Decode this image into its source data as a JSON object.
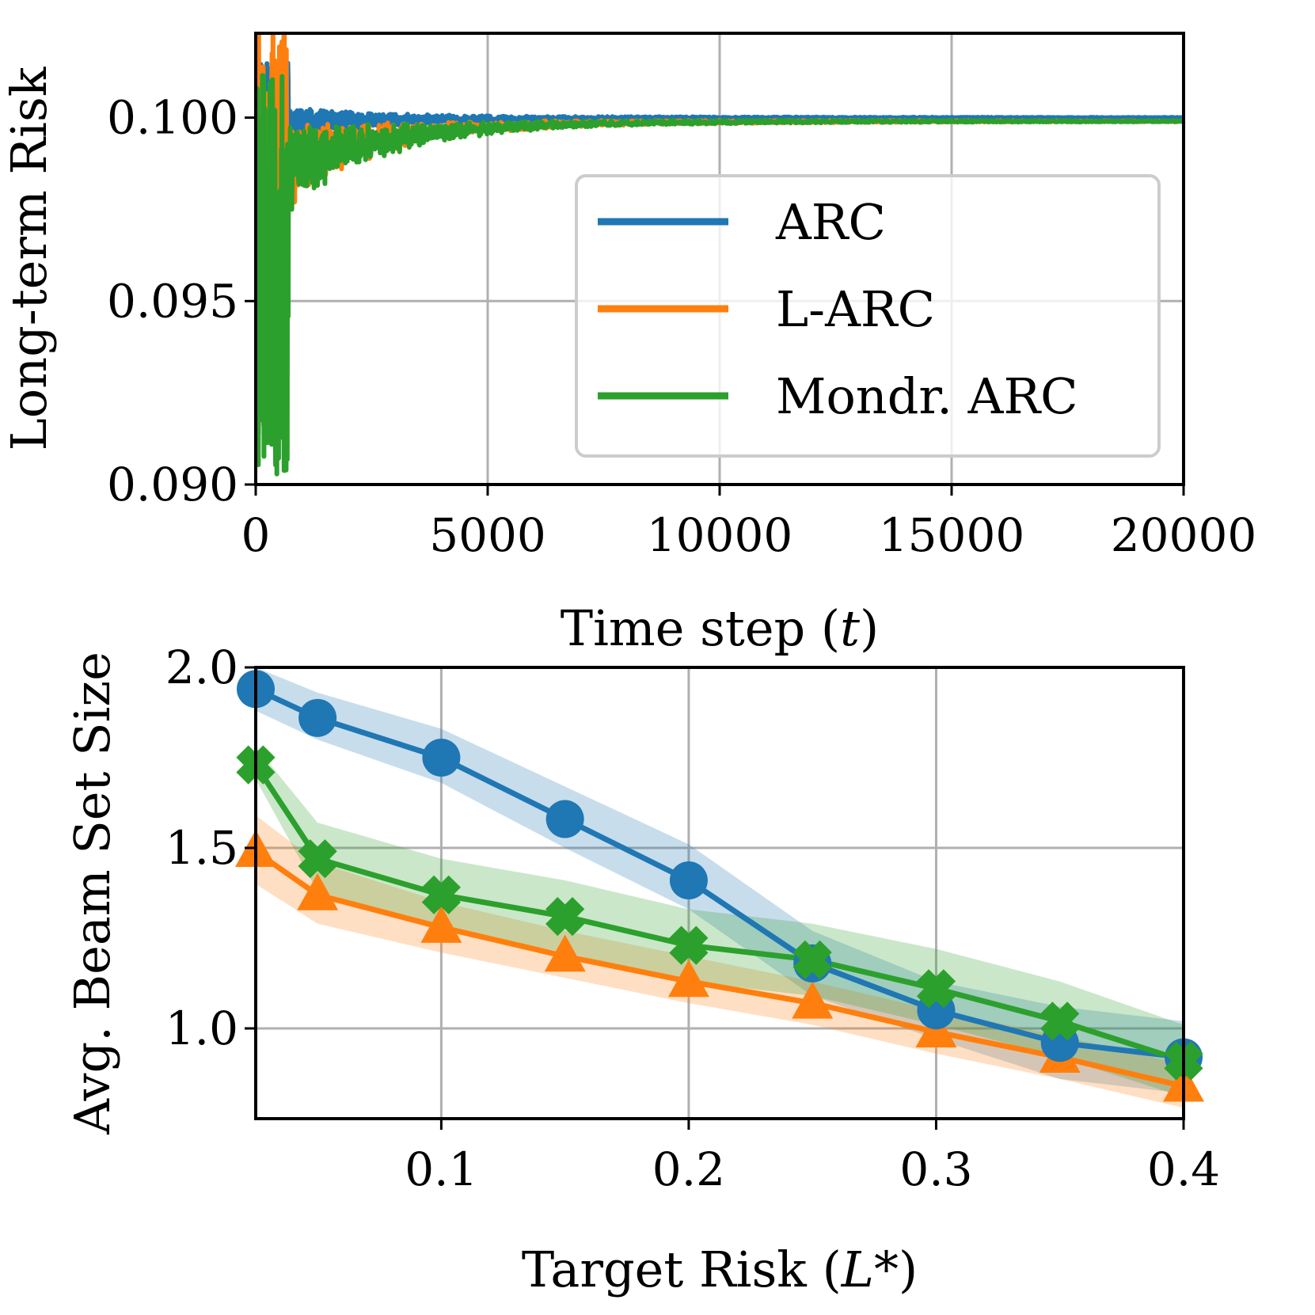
{
  "colors": {
    "arc": "#1f77b4",
    "larc": "#ff7f0e",
    "mondrian": "#2ca02c",
    "grid": "#b0b0b0"
  },
  "chart_data": [
    {
      "type": "line",
      "xlabel_prefix": "Time step (",
      "xlabel_var": "t",
      "xlabel_suffix": ")",
      "ylabel": "Long-term Risk",
      "xlim": [
        0,
        20000
      ],
      "ylim": [
        0.09,
        0.1023
      ],
      "xticks": [
        0,
        5000,
        10000,
        15000,
        20000
      ],
      "xtick_labels": [
        "0",
        "5000",
        "10000",
        "15000",
        "20000"
      ],
      "yticks": [
        0.09,
        0.095,
        0.1
      ],
      "ytick_labels": [
        "0.090",
        "0.095",
        "0.100"
      ],
      "grid": true,
      "legend_position": "center-right",
      "series": [
        {
          "name": "ARC",
          "color_key": "arc",
          "start": 0.1015,
          "converged": 0.1,
          "noise_amplitude": 0.0011,
          "floor": 0.0997,
          "min": 0.0935
        },
        {
          "name": "L-ARC",
          "color_key": "larc",
          "start": 0.1023,
          "converged": 0.0999,
          "noise_amplitude": 0.002,
          "floor": 0.0977,
          "min": 0.0915
        },
        {
          "name": "Mondr. ARC",
          "color_key": "mondrian",
          "start": 0.1012,
          "converged": 0.0999,
          "noise_amplitude": 0.0021,
          "floor": 0.0975,
          "min": 0.09
        }
      ]
    },
    {
      "type": "line",
      "xlabel_prefix": "Target Risk (",
      "xlabel_var": "L*",
      "xlabel_suffix": ")",
      "ylabel": "Avg. Beam Set Size",
      "xlim": [
        0.025,
        0.4
      ],
      "ylim": [
        0.75,
        2.0
      ],
      "xticks": [
        0.1,
        0.2,
        0.3,
        0.4
      ],
      "xtick_labels": [
        "0.1",
        "0.2",
        "0.3",
        "0.4"
      ],
      "yticks": [
        1.0,
        1.5,
        2.0
      ],
      "ytick_labels": [
        "1.0",
        "1.5",
        "2.0"
      ],
      "grid": true,
      "x": [
        0.025,
        0.05,
        0.1,
        0.15,
        0.2,
        0.25,
        0.3,
        0.35,
        0.4
      ],
      "series": [
        {
          "name": "ARC",
          "color_key": "arc",
          "marker": "circle",
          "values": [
            1.94,
            1.86,
            1.75,
            1.58,
            1.41,
            1.18,
            1.05,
            0.96,
            0.92
          ],
          "lower": [
            1.88,
            1.8,
            1.68,
            1.5,
            1.33,
            1.09,
            0.97,
            0.86,
            0.82
          ],
          "upper": [
            2.0,
            1.93,
            1.83,
            1.67,
            1.51,
            1.27,
            1.13,
            1.06,
            1.02
          ]
        },
        {
          "name": "L-ARC",
          "color_key": "larc",
          "marker": "triangle",
          "values": [
            1.49,
            1.37,
            1.28,
            1.2,
            1.13,
            1.07,
            0.99,
            0.92,
            0.84
          ],
          "lower": [
            1.4,
            1.29,
            1.21,
            1.14,
            1.07,
            1.01,
            0.93,
            0.86,
            0.78
          ],
          "upper": [
            1.59,
            1.46,
            1.35,
            1.27,
            1.2,
            1.13,
            1.05,
            0.98,
            0.9
          ]
        },
        {
          "name": "Mondr. ARC",
          "color_key": "mondrian",
          "marker": "cross",
          "values": [
            1.73,
            1.47,
            1.37,
            1.31,
            1.23,
            1.19,
            1.11,
            1.02,
            0.91
          ],
          "lower": [
            1.69,
            1.38,
            1.28,
            1.21,
            1.13,
            1.09,
            1.01,
            0.92,
            0.81
          ],
          "upper": [
            1.78,
            1.57,
            1.47,
            1.41,
            1.33,
            1.29,
            1.22,
            1.13,
            1.01
          ]
        }
      ]
    }
  ]
}
